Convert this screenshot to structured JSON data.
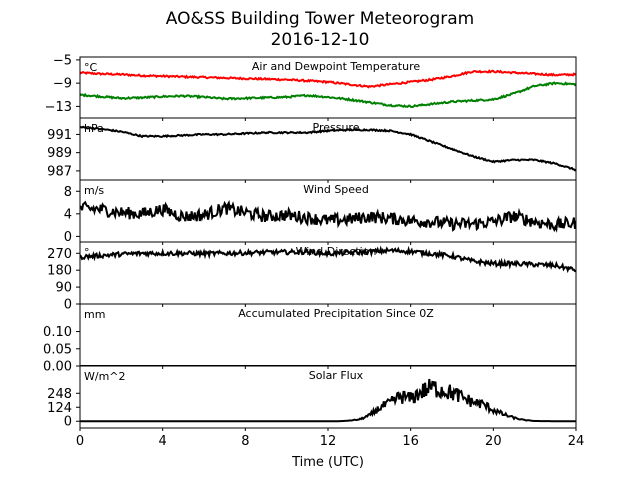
{
  "figure": {
    "title_line1": "AO&SS Building Tower Meteorogram",
    "title_line2": "2016-12-10"
  },
  "chart_data": {
    "type": "line",
    "xlabel": "Time (UTC)",
    "xlim": [
      0,
      24
    ],
    "xticks": [
      0,
      4,
      8,
      12,
      16,
      20,
      24
    ],
    "xtick_labels": [
      "0",
      "4",
      "8",
      "12",
      "16",
      "20",
      "24"
    ],
    "panels": [
      {
        "id": "temp",
        "title": "Air and Dewpoint Temperature",
        "unit": "°C",
        "ylim": [
          -15,
          -4.5
        ],
        "yticks": [
          -5,
          -9,
          -13
        ],
        "ytick_labels": [
          "−5",
          "−9",
          "−13"
        ],
        "series": [
          {
            "color": "#ff0000",
            "x": [
              0,
              1,
              2,
              3,
              4,
              5,
              6,
              7,
              8,
              9,
              10,
              11,
              12,
              13,
              14,
              15,
              16,
              17,
              18,
              19,
              20,
              21,
              22,
              23,
              24
            ],
            "y": [
              -7.2,
              -7.4,
              -7.5,
              -7.7,
              -7.8,
              -7.9,
              -8.0,
              -8.1,
              -8.2,
              -8.3,
              -8.4,
              -8.6,
              -8.8,
              -9.2,
              -9.6,
              -9.2,
              -8.8,
              -8.4,
              -7.8,
              -7.0,
              -7.0,
              -7.2,
              -7.4,
              -7.6,
              -7.5
            ],
            "noise": 0.15
          },
          {
            "color": "#008000",
            "x": [
              0,
              1,
              2,
              3,
              4,
              5,
              6,
              7,
              8,
              9,
              10,
              11,
              12,
              13,
              14,
              15,
              16,
              17,
              18,
              19,
              20,
              21,
              22,
              23,
              24
            ],
            "y": [
              -11.0,
              -11.3,
              -11.6,
              -11.5,
              -11.3,
              -11.2,
              -11.4,
              -11.7,
              -11.6,
              -11.5,
              -11.4,
              -11.1,
              -11.4,
              -11.8,
              -12.3,
              -12.8,
              -13.0,
              -12.6,
              -12.2,
              -12.0,
              -11.8,
              -10.8,
              -9.5,
              -9.0,
              -9.2
            ],
            "noise": 0.15
          }
        ]
      },
      {
        "id": "pressure",
        "title": "Pressure",
        "unit": "hPa",
        "ylim": [
          986.0,
          992.8
        ],
        "yticks": [
          991,
          989,
          987
        ],
        "ytick_labels": [
          "991",
          "989",
          "987"
        ],
        "series": [
          {
            "color": "#000000",
            "x": [
              0,
              1,
              2,
              3,
              4,
              5,
              6,
              7,
              8,
              9,
              10,
              11,
              12,
              13,
              14,
              15,
              16,
              17,
              18,
              19,
              20,
              21,
              22,
              23,
              24
            ],
            "y": [
              991.8,
              991.6,
              991.3,
              990.8,
              990.8,
              990.9,
              991.0,
              991.0,
              991.1,
              991.2,
              991.2,
              991.2,
              991.4,
              991.5,
              991.5,
              991.4,
              991.0,
              990.2,
              989.4,
              988.6,
              988.0,
              988.2,
              988.2,
              987.8,
              987.1
            ],
            "noise": 0.08
          }
        ]
      },
      {
        "id": "wind_speed",
        "title": "Wind Speed",
        "unit": "m/s",
        "ylim": [
          -1,
          10
        ],
        "yticks": [
          8,
          4,
          0
        ],
        "ytick_labels": [
          "8",
          "4",
          "0"
        ],
        "series": [
          {
            "color": "#000000",
            "x": [
              0,
              1,
              2,
              3,
              4,
              5,
              6,
              7,
              8,
              9,
              10,
              11,
              12,
              13,
              14,
              15,
              16,
              17,
              18,
              19,
              20,
              21,
              22,
              23,
              24
            ],
            "y": [
              5.0,
              4.8,
              4.2,
              4.0,
              4.8,
              3.5,
              3.8,
              5.0,
              4.2,
              3.5,
              3.8,
              3.3,
              2.8,
              3.0,
              3.5,
              3.2,
              2.8,
              2.6,
              2.2,
              2.2,
              2.6,
              3.6,
              2.6,
              2.0,
              2.4
            ],
            "noise": 1.1
          }
        ]
      },
      {
        "id": "wind_dir",
        "title": "Wind Direction",
        "unit": "°",
        "ylim": [
          0,
          330
        ],
        "yticks": [
          270,
          180,
          90,
          0
        ],
        "ytick_labels": [
          "270",
          "180",
          "90",
          "0"
        ],
        "series": [
          {
            "color": "#000000",
            "x": [
              0,
              1,
              2,
              3,
              4,
              5,
              6,
              7,
              8,
              9,
              10,
              11,
              12,
              13,
              14,
              15,
              16,
              17,
              18,
              19,
              20,
              21,
              22,
              23,
              24
            ],
            "y": [
              250,
              258,
              265,
              270,
              270,
              270,
              268,
              270,
              272,
              275,
              276,
              278,
              268,
              272,
              278,
              285,
              280,
              268,
              255,
              228,
              215,
              215,
              210,
              205,
              180
            ],
            "noise": 12
          }
        ]
      },
      {
        "id": "precip",
        "title": "Accumulated Precipitation Since 0Z",
        "unit": "mm",
        "ylim": [
          0,
          0.18
        ],
        "yticks": [
          0.1,
          0.05,
          0.0
        ],
        "ytick_labels": [
          "0.10",
          "0.05",
          "0.00"
        ],
        "series": [
          {
            "color": "#000000",
            "x": [
              0,
              24
            ],
            "y": [
              0.0,
              0.0
            ],
            "noise": 0
          }
        ]
      },
      {
        "id": "solar",
        "title": "Solar Flux",
        "unit": "W/m^2",
        "ylim": [
          -60,
          490
        ],
        "yticks": [
          248,
          124,
          0
        ],
        "ytick_labels": [
          "248",
          "124",
          "0"
        ],
        "series": [
          {
            "color": "#000000",
            "x": [
              0,
              12.5,
              13,
              13.5,
              14,
              14.5,
              15,
              15.5,
              16,
              16.5,
              17,
              17.5,
              18,
              18.5,
              19,
              19.5,
              20,
              20.5,
              21,
              21.5,
              22,
              23,
              24
            ],
            "y": [
              0,
              0,
              5,
              15,
              50,
              120,
              160,
              220,
              200,
              260,
              300,
              280,
              250,
              210,
              170,
              150,
              100,
              60,
              30,
              10,
              2,
              0,
              0
            ],
            "noise_spikes": true
          }
        ]
      }
    ]
  }
}
